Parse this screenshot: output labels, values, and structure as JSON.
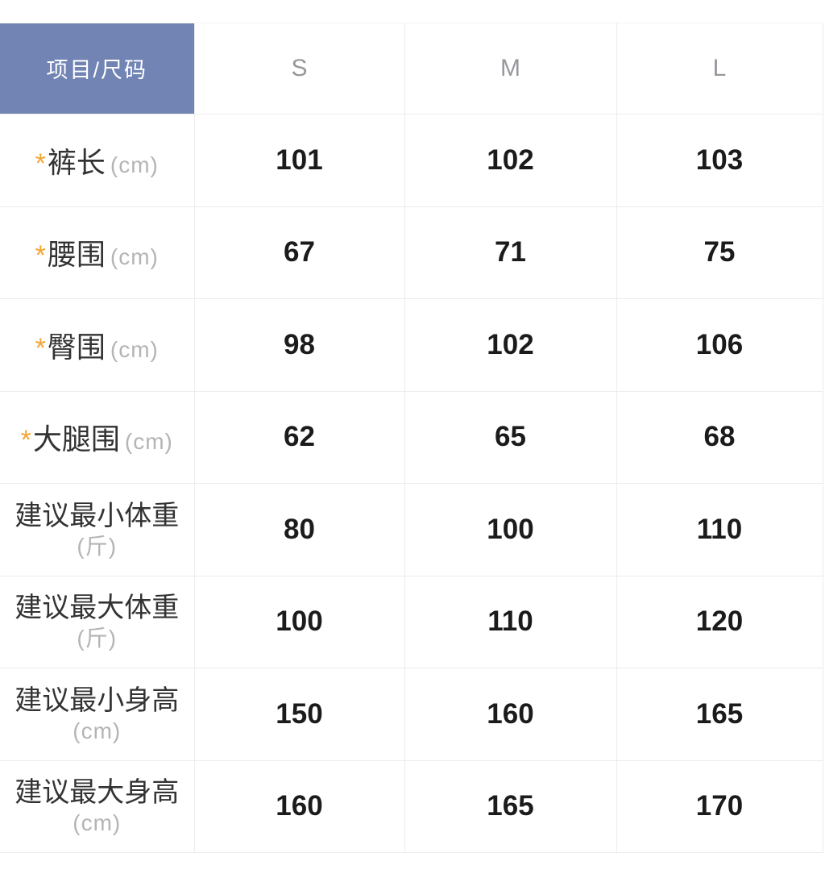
{
  "size_chart": {
    "corner_label": "项目/尺码",
    "required_marker": "*",
    "size_headers": [
      "S",
      "M",
      "L"
    ],
    "rows": [
      {
        "label": "裤长",
        "unit": "(cm)",
        "required": true,
        "values": [
          "101",
          "102",
          "103"
        ]
      },
      {
        "label": "腰围",
        "unit": "(cm)",
        "required": true,
        "values": [
          "67",
          "71",
          "75"
        ]
      },
      {
        "label": "臀围",
        "unit": "(cm)",
        "required": true,
        "values": [
          "98",
          "102",
          "106"
        ]
      },
      {
        "label": "大腿围",
        "unit": "(cm)",
        "required": true,
        "values": [
          "62",
          "65",
          "68"
        ]
      },
      {
        "label": "建议最小体重",
        "unit": "(斤)",
        "required": false,
        "values": [
          "80",
          "100",
          "110"
        ]
      },
      {
        "label": "建议最大体重",
        "unit": "(斤)",
        "required": false,
        "values": [
          "100",
          "110",
          "120"
        ]
      },
      {
        "label": "建议最小身高",
        "unit": "(cm)",
        "required": false,
        "values": [
          "150",
          "160",
          "165"
        ]
      },
      {
        "label": "建议最大身高",
        "unit": "(cm)",
        "required": false,
        "values": [
          "160",
          "165",
          "170"
        ]
      }
    ],
    "colors": {
      "header_bg": "#7184b4",
      "header_text": "#ffffff",
      "size_header_text": "#97979d",
      "required_marker": "#f3a536",
      "label_text": "#333333",
      "unit_text": "#b4b4b4",
      "value_text": "#1b1b1b",
      "divider": "#ececec"
    }
  }
}
